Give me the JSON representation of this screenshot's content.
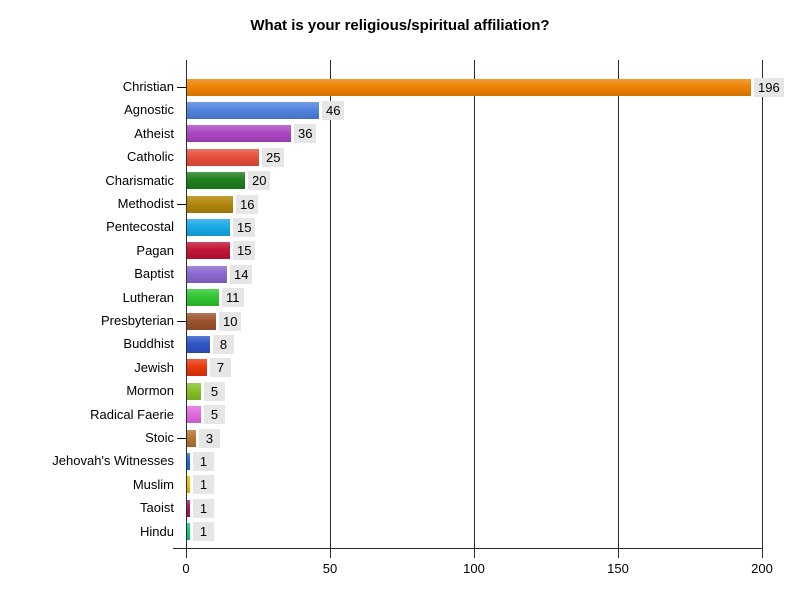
{
  "title": "What is your religious/spiritual affiliation?",
  "chart_data": {
    "type": "bar",
    "orientation": "horizontal",
    "title": "What is your religious/spiritual affiliation?",
    "categories": [
      "Christian",
      "Agnostic",
      "Atheist",
      "Catholic",
      "Charismatic",
      "Methodist",
      "Pentecostal",
      "Pagan",
      "Baptist",
      "Lutheran",
      "Presbyterian",
      "Buddhist",
      "Jewish",
      "Mormon",
      "Radical Faerie",
      "Stoic",
      "Jehovah's Witnesses",
      "Muslim",
      "Taoist",
      "Hindu"
    ],
    "values": [
      196,
      46,
      36,
      25,
      20,
      16,
      15,
      15,
      14,
      11,
      10,
      8,
      7,
      5,
      5,
      3,
      1,
      1,
      1,
      1
    ],
    "bar_colors": [
      "#EE8100",
      "#4F81DD",
      "#AB44C3",
      "#E64C37",
      "#1B7E1B",
      "#B08408",
      "#14A8E6",
      "#C11134",
      "#8967CF",
      "#2EC42E",
      "#9C512B",
      "#2D52C7",
      "#E93508",
      "#82C026",
      "#E167E1",
      "#B5722E",
      "#1D69DF",
      "#EDBA00",
      "#A90F5F",
      "#10C878"
    ],
    "value_labels": [
      "196",
      "46",
      "36",
      "25",
      "20",
      "16",
      "15",
      "15",
      "14",
      "11",
      "10",
      "8",
      "7",
      "5",
      "5",
      "3",
      "1",
      "1",
      "1",
      "1"
    ],
    "value_label_background": "#E6E6E6",
    "xlabel": "",
    "ylabel": "",
    "xlim": [
      0,
      200
    ],
    "xticks": [
      0,
      50,
      100,
      150,
      200
    ],
    "xtick_labels": [
      "0",
      "50",
      "100",
      "150",
      "200"
    ],
    "grid": true,
    "legend": false,
    "category_tick_rows": [
      0,
      5,
      10,
      15
    ],
    "axis_color": "#2e2e2e",
    "background_color": "#ffffff",
    "title_color": "#000000"
  }
}
